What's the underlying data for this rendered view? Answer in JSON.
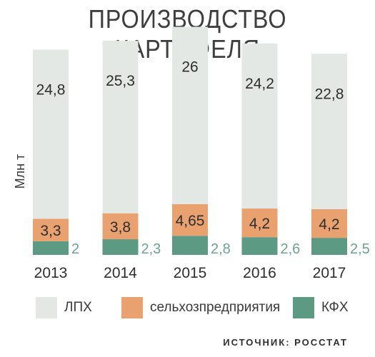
{
  "title": "ПРОИЗВОДСТВО КАРТОФЕЛЯ",
  "source_note": "ИСТОЧНИК: РОССТАТ",
  "colors": {
    "lph": "#e3e8e4",
    "agri": "#e9a16f",
    "kfh": "#5c9a84",
    "kfh_label": "#6aa58d",
    "text": "#3a3a3a"
  },
  "chart_data": {
    "type": "bar",
    "ylabel": "Млн т",
    "categories": [
      "2013",
      "2014",
      "2015",
      "2016",
      "2017"
    ],
    "series": [
      {
        "name": "ЛПХ",
        "values": [
          24.8,
          25.3,
          26,
          24.2,
          22.8
        ],
        "labels": [
          "24,8",
          "25,3",
          "26",
          "24,2",
          "22,8"
        ]
      },
      {
        "name": "сельхозпредприятия",
        "values": [
          3.3,
          3.8,
          4.65,
          4.2,
          4.2
        ],
        "labels": [
          "3,3",
          "3,8",
          "4,65",
          "4,2",
          "4,2"
        ]
      },
      {
        "name": "КФХ",
        "values": [
          2,
          2.3,
          2.8,
          2.6,
          2.5
        ],
        "labels": [
          "2",
          "2,3",
          "2,8",
          "2,6",
          "2,5"
        ]
      }
    ],
    "grid": false,
    "legend_position": "bottom"
  }
}
